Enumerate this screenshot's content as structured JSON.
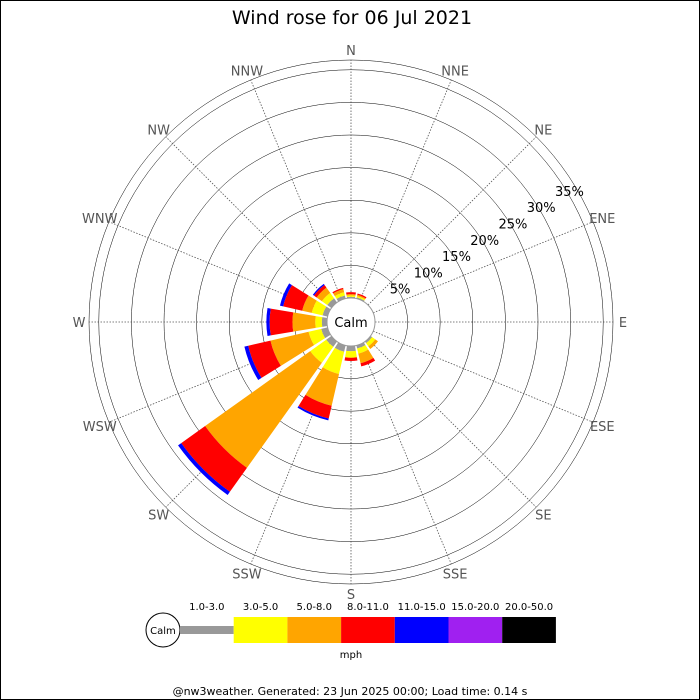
{
  "chart_data": {
    "type": "windrose",
    "title": "Wind rose for 06 Jul 2021",
    "directions": [
      "N",
      "NNE",
      "NE",
      "ENE",
      "E",
      "ESE",
      "SE",
      "SSE",
      "S",
      "SSW",
      "SW",
      "WSW",
      "W",
      "WNW",
      "NW",
      "NNW"
    ],
    "ring_labels": [
      "5%",
      "10%",
      "15%",
      "20%",
      "25%",
      "30%",
      "35%"
    ],
    "ring_values": [
      5,
      10,
      15,
      20,
      25,
      30,
      35
    ],
    "rmax_percent": 36.5,
    "calm_label": "Calm",
    "unit_label": "mph",
    "bins": [
      {
        "label": "1.0-3.0",
        "color": "#999999"
      },
      {
        "label": "3.0-5.0",
        "color": "#ffff00"
      },
      {
        "label": "5.0-8.0",
        "color": "#ffa500"
      },
      {
        "label": "8.0-11.0",
        "color": "#ff0000"
      },
      {
        "label": "11.0-15.0",
        "color": "#0000ff"
      },
      {
        "label": "15.0-20.0",
        "color": "#a020f0"
      },
      {
        "label": "20.0-50.0",
        "color": "#000000"
      }
    ],
    "series": {
      "N": [
        0.2,
        0.2,
        0.2,
        0.3,
        0,
        0,
        0
      ],
      "NNE": [
        0.2,
        0.2,
        0.2,
        0.2,
        0,
        0,
        0
      ],
      "NE": [
        0,
        0,
        0,
        0,
        0,
        0,
        0
      ],
      "ENE": [
        0,
        0,
        0,
        0,
        0,
        0,
        0
      ],
      "E": [
        0,
        0,
        0,
        0,
        0,
        0,
        0
      ],
      "ESE": [
        0,
        0,
        0,
        0,
        0,
        0,
        0
      ],
      "SE": [
        0.3,
        0.6,
        0.5,
        0,
        0,
        0,
        0
      ],
      "SSE": [
        0.5,
        0.8,
        1.5,
        0.5,
        0,
        0,
        0
      ],
      "S": [
        0.8,
        1.0,
        0,
        0.5,
        0,
        0,
        0
      ],
      "SSW": [
        1.0,
        3.5,
        5.0,
        2.0,
        0.3,
        0,
        0
      ],
      "SW": [
        1.0,
        3.0,
        19.8,
        4.5,
        0.6,
        0,
        0
      ],
      "WSW": [
        1.0,
        2.0,
        6.0,
        3.5,
        0.6,
        0,
        0
      ],
      "W": [
        0.8,
        1.0,
        3.5,
        3.5,
        0.5,
        0,
        0
      ],
      "WNW": [
        0.8,
        1.7,
        1.5,
        3.0,
        0.5,
        0,
        0
      ],
      "NW": [
        0.8,
        1.0,
        1.0,
        0.5,
        0.2,
        0,
        0
      ],
      "NNW": [
        0.5,
        0.5,
        0.5,
        0.2,
        0,
        0,
        0
      ]
    }
  },
  "footer": "@nw3weather. Generated: 23 Jun 2025 00:00; Load time: 0.14 s"
}
